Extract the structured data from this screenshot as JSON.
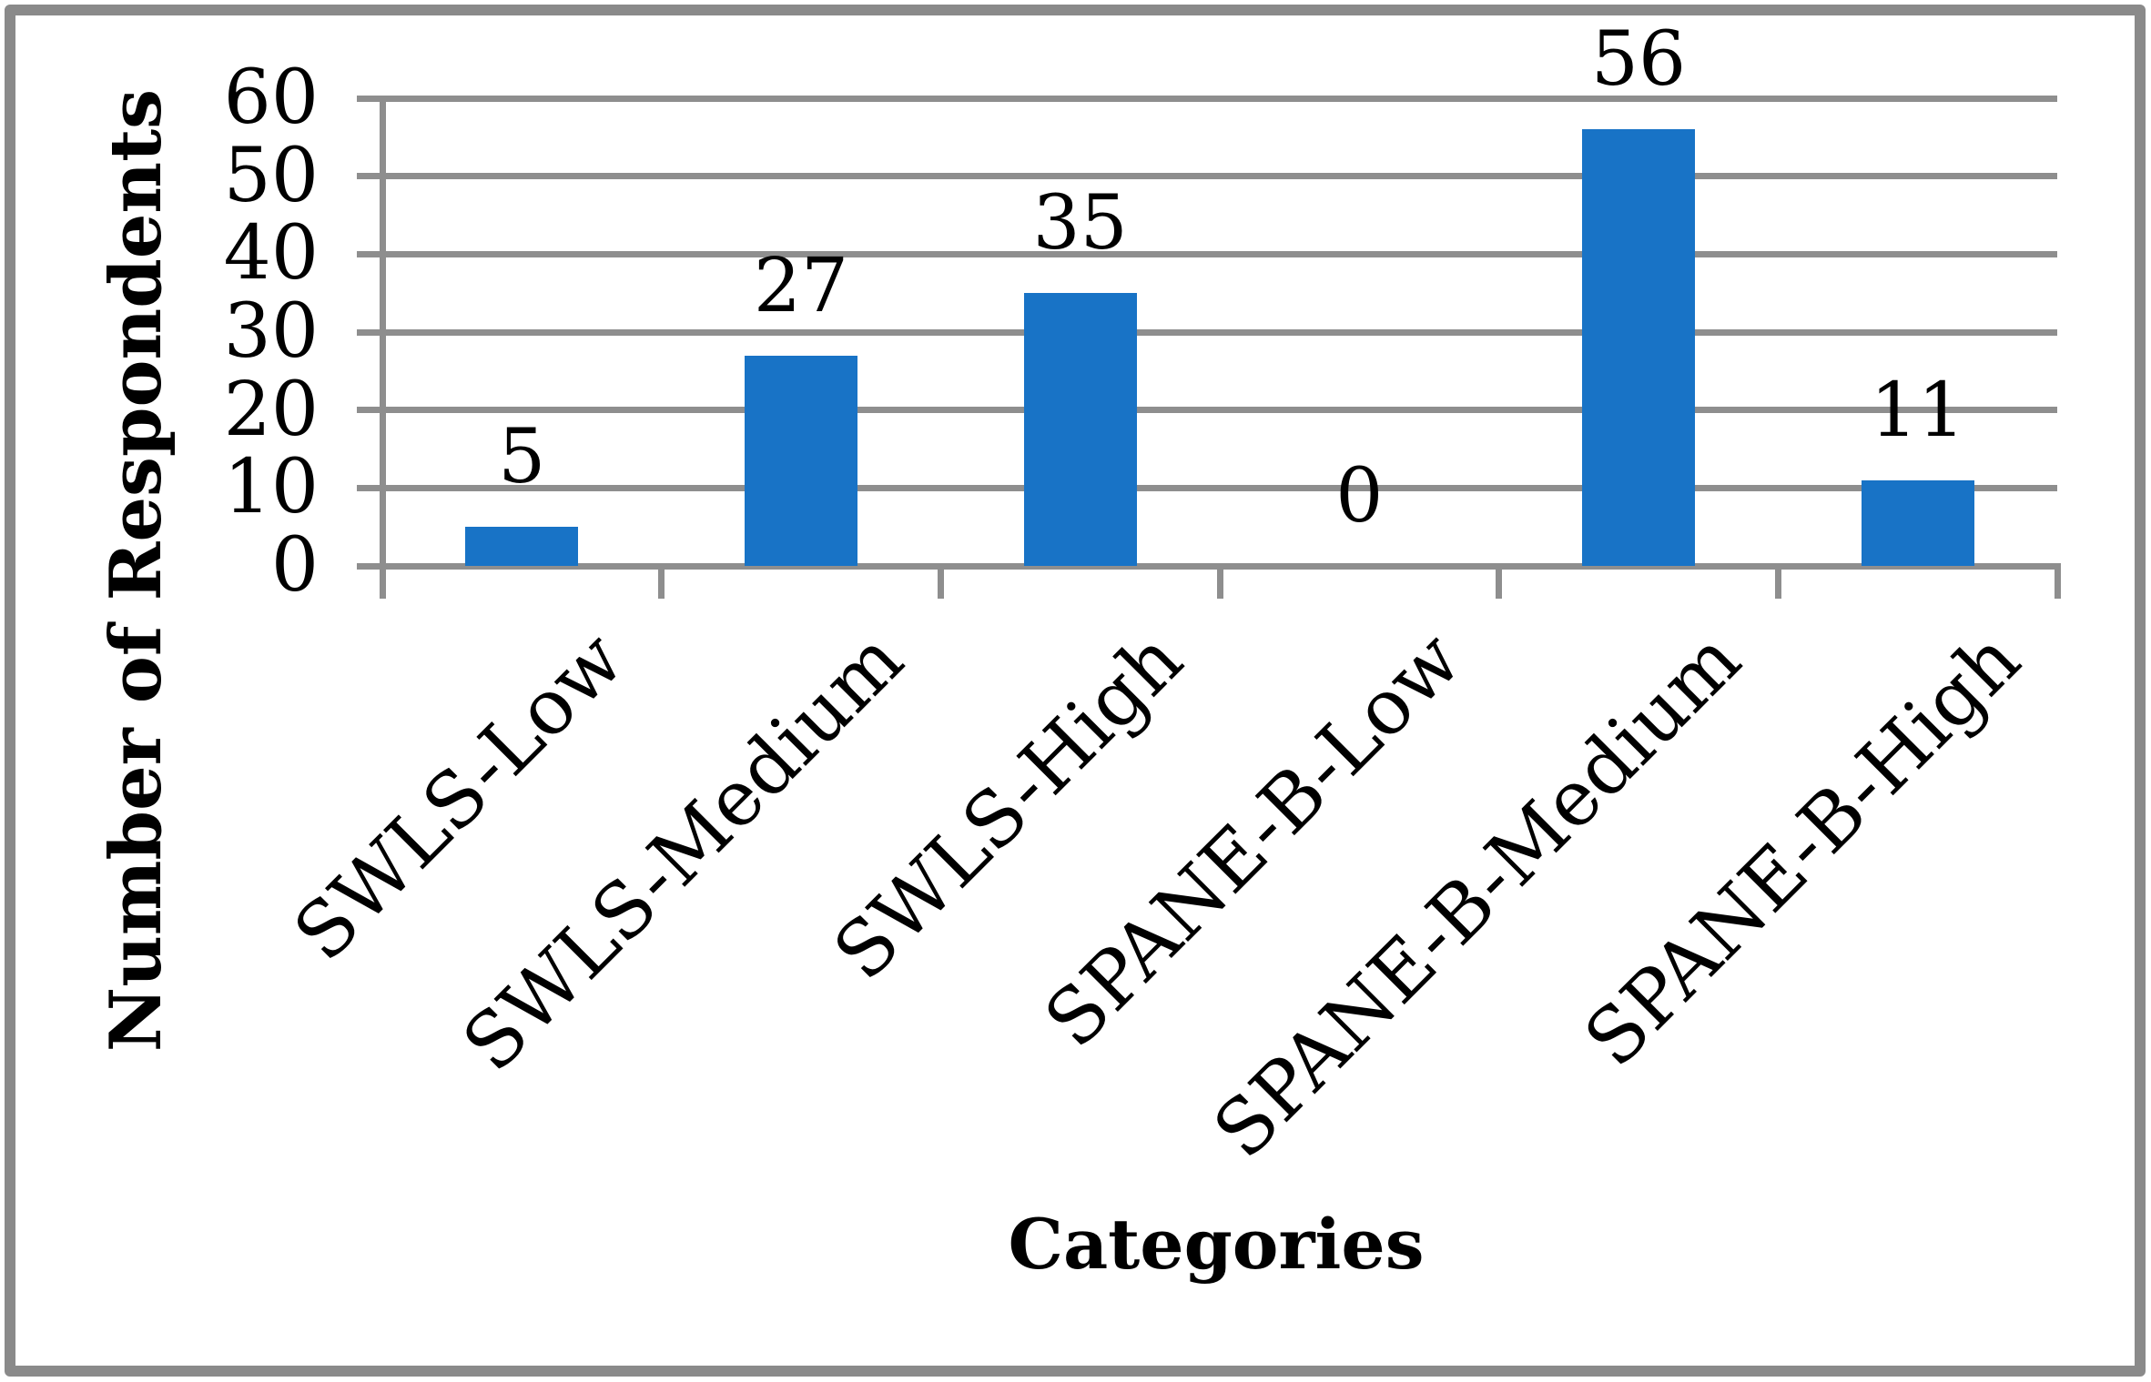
{
  "chart_data": {
    "type": "bar",
    "title": "",
    "categories": [
      "SWLS-Low",
      "SWLS-Medium",
      "SWLS-High",
      "SPANE-B-Low",
      "SPANE-B-Medium",
      "SPANE-B-High"
    ],
    "values": [
      5,
      27,
      35,
      0,
      56,
      11
    ],
    "data_labels": [
      "5",
      "27",
      "35",
      "0",
      "56",
      "11"
    ],
    "xlabel": "Categories",
    "ylabel": "Number of Respondents",
    "ylim": [
      0,
      60
    ],
    "ytick_interval": 10,
    "ytick_labels": [
      "0",
      "10",
      "20",
      "30",
      "40",
      "50",
      "60"
    ],
    "grid": "horizontal gridlines",
    "legend": "none",
    "category_label_rotation_deg": 45,
    "colors": {
      "bar": "#1873C6",
      "gridline": "#8E8E8E",
      "frame": "#8A8A8A",
      "text": "#000000",
      "background": "#FFFFFF"
    }
  }
}
